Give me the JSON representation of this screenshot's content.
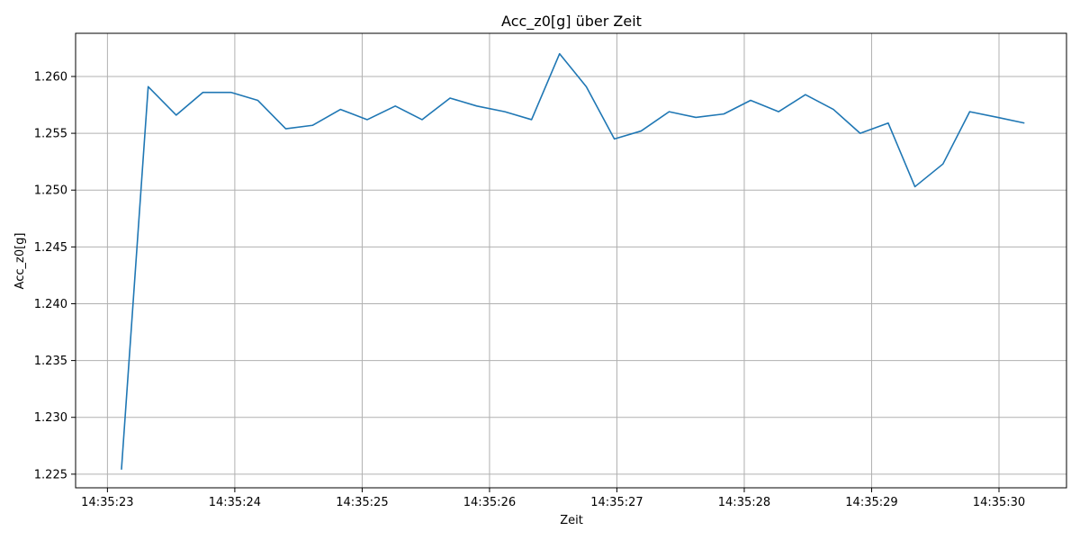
{
  "chart_data": {
    "type": "line",
    "title": "Acc_z0[g] über Zeit",
    "xlabel": "Zeit",
    "ylabel": "Acc_z0[g]",
    "grid": true,
    "xlim": [
      22.75,
      30.53
    ],
    "ylim": [
      1.2238,
      1.2638
    ],
    "x_ticks": [
      {
        "value": 23,
        "label": "14:35:23"
      },
      {
        "value": 24,
        "label": "14:35:24"
      },
      {
        "value": 25,
        "label": "14:35:25"
      },
      {
        "value": 26,
        "label": "14:35:26"
      },
      {
        "value": 27,
        "label": "14:35:27"
      },
      {
        "value": 28,
        "label": "14:35:28"
      },
      {
        "value": 29,
        "label": "14:35:29"
      },
      {
        "value": 30,
        "label": "14:35:30"
      }
    ],
    "y_ticks": [
      {
        "value": 1.225,
        "label": "1.225"
      },
      {
        "value": 1.23,
        "label": "1.230"
      },
      {
        "value": 1.235,
        "label": "1.235"
      },
      {
        "value": 1.24,
        "label": "1.240"
      },
      {
        "value": 1.245,
        "label": "1.245"
      },
      {
        "value": 1.25,
        "label": "1.250"
      },
      {
        "value": 1.255,
        "label": "1.255"
      },
      {
        "value": 1.26,
        "label": "1.260"
      }
    ],
    "series": [
      {
        "color": "#1f77b4",
        "x": [
          23.11,
          23.32,
          23.54,
          23.75,
          23.97,
          24.18,
          24.4,
          24.61,
          24.83,
          25.04,
          25.26,
          25.47,
          25.69,
          25.9,
          26.12,
          26.33,
          26.55,
          26.76,
          26.98,
          27.19,
          27.41,
          27.62,
          27.84,
          28.05,
          28.27,
          28.48,
          28.7,
          28.91,
          29.13,
          29.34,
          29.56,
          29.77,
          29.99,
          30.2
        ],
        "y": [
          1.2254,
          1.2591,
          1.2566,
          1.2586,
          1.2586,
          1.2579,
          1.2554,
          1.2557,
          1.2571,
          1.2562,
          1.2574,
          1.2562,
          1.2581,
          1.2574,
          1.2569,
          1.2562,
          1.262,
          1.2591,
          1.2545,
          1.2552,
          1.2569,
          1.2564,
          1.2567,
          1.2579,
          1.2569,
          1.2584,
          1.2571,
          1.255,
          1.2559,
          1.2503,
          1.2523,
          1.2569,
          1.2564,
          1.2559
        ]
      }
    ]
  }
}
